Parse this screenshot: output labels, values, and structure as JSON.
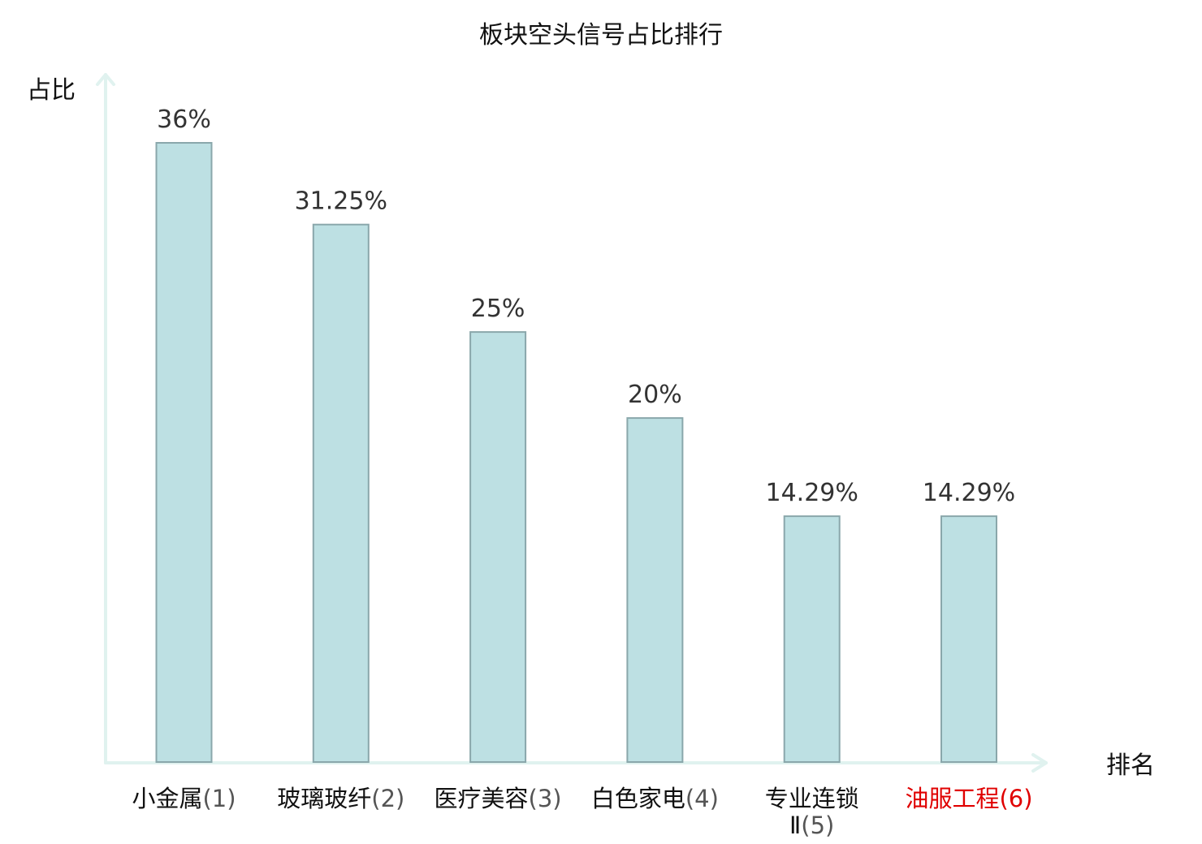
{
  "chart_data": {
    "type": "bar",
    "title": "板块空头信号占比排行",
    "ylabel": "占比",
    "xlabel": "排名",
    "categories": [
      {
        "name": "小金属",
        "rank": "(1)",
        "name_line2": "",
        "highlight": false
      },
      {
        "name": "玻璃玻纤",
        "rank": "(2)",
        "name_line2": "",
        "highlight": false
      },
      {
        "name": "医疗美容",
        "rank": "(3)",
        "name_line2": "",
        "highlight": false
      },
      {
        "name": "白色家电",
        "rank": "(4)",
        "name_line2": "",
        "highlight": false
      },
      {
        "name": "专业连锁",
        "rank": "(5)",
        "name_line2": "Ⅱ",
        "highlight": false
      },
      {
        "name": "油服工程",
        "rank": "(6)",
        "name_line2": "",
        "highlight": true
      }
    ],
    "values": [
      36,
      31.25,
      25,
      20,
      14.29,
      14.29
    ],
    "value_labels": [
      "36%",
      "31.25%",
      "25%",
      "20%",
      "14.29%",
      "14.29%"
    ],
    "ylim": [
      0,
      36
    ],
    "grid": false,
    "legend": "none",
    "colors": {
      "bar_fill": "#bde0e3",
      "bar_stroke": "#8aa7ab",
      "axis": "#e0f2ef",
      "highlight_label": "#e00000"
    }
  }
}
